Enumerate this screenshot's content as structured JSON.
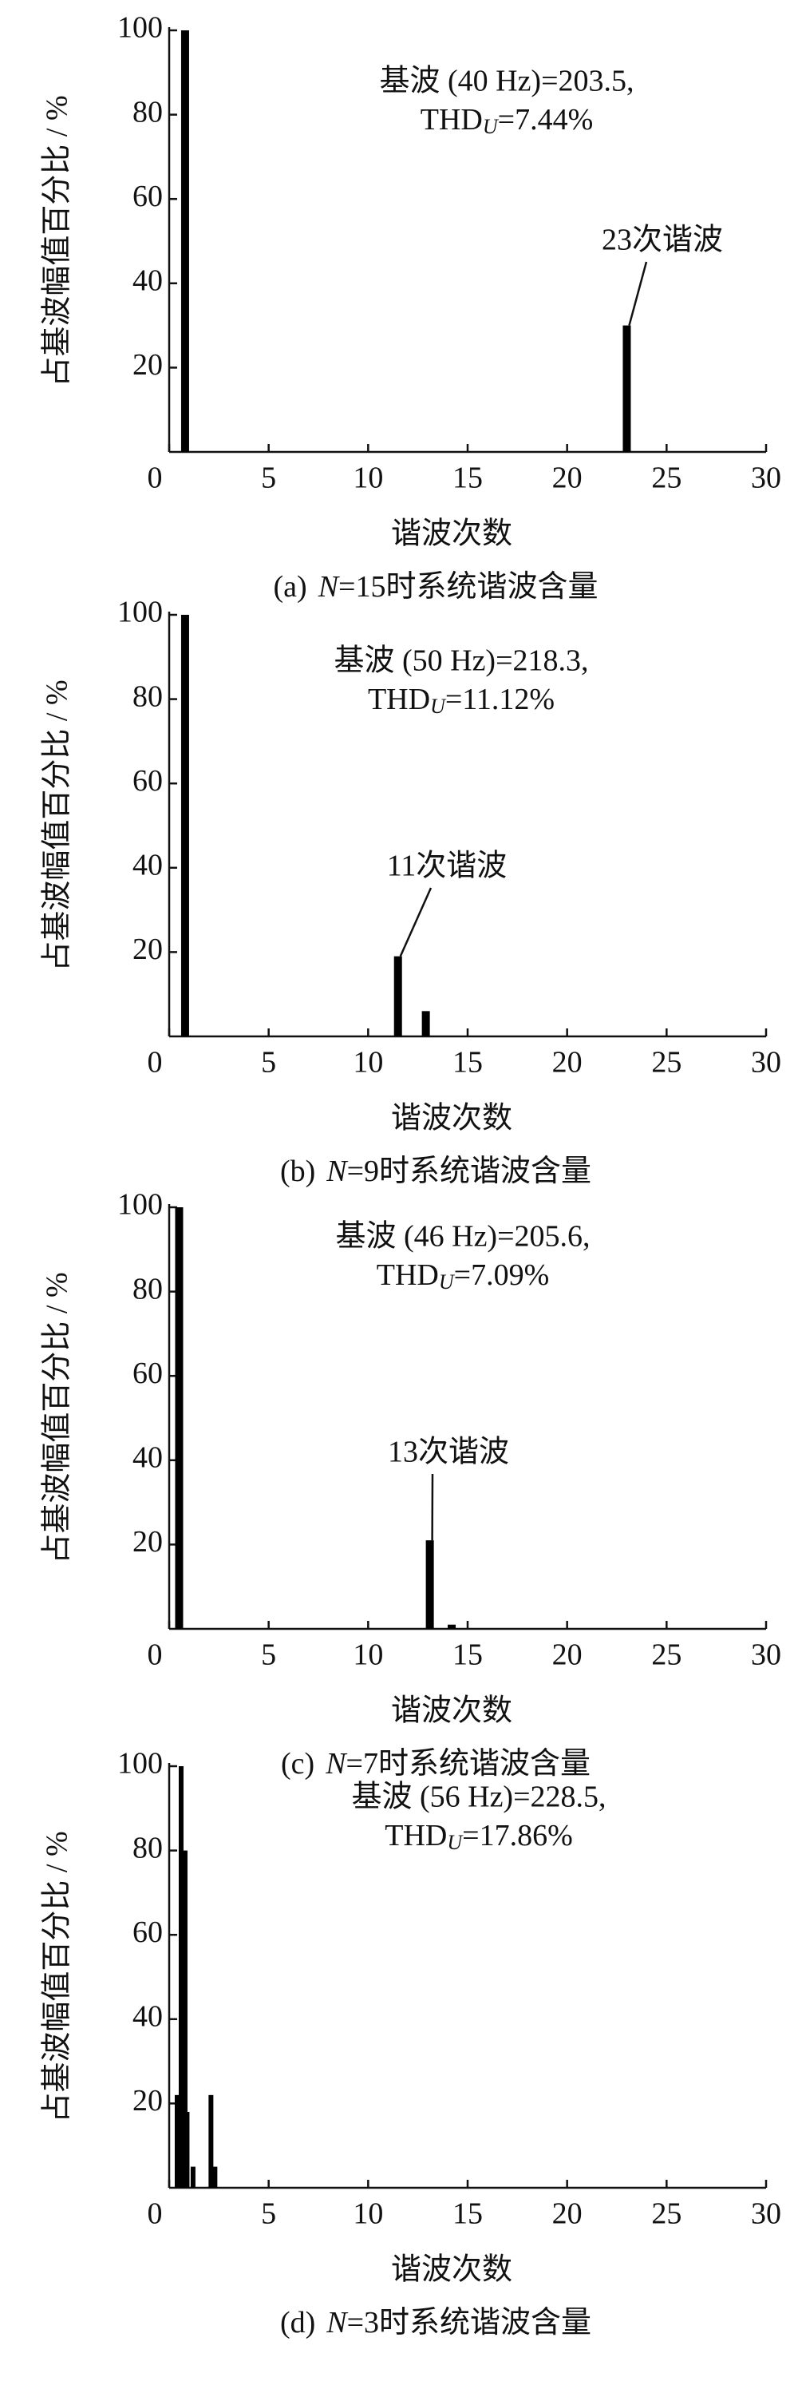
{
  "chart_data": [
    {
      "type": "bar",
      "x": [
        0.8,
        23
      ],
      "values": [
        100,
        30
      ],
      "xlim": [
        0,
        30
      ],
      "xticks": [
        0,
        5,
        10,
        15,
        20,
        25,
        30
      ],
      "ylim": [
        0,
        100
      ],
      "yticks": [
        20,
        40,
        60,
        80,
        100
      ],
      "x_label": "谐波次数",
      "y_label": "占基波幅值百分比 / %",
      "annotation": "基波 (40 Hz)=203.5,",
      "thd_prefix": "THD",
      "thd_sub": "U",
      "thd_value": "=7.44%",
      "callout": "23次谐波",
      "caption_prefix": "(a)",
      "caption_var": "N",
      "caption_rest": "=15时系统谐波含量",
      "color": "#000000"
    },
    {
      "type": "bar",
      "x": [
        0.8,
        11.5,
        12.9
      ],
      "values": [
        100,
        19,
        6
      ],
      "xlim": [
        0,
        30
      ],
      "xticks": [
        0,
        5,
        10,
        15,
        20,
        25,
        30
      ],
      "ylim": [
        0,
        100
      ],
      "yticks": [
        20,
        40,
        60,
        80,
        100
      ],
      "x_label": "谐波次数",
      "y_label": "占基波幅值百分比 / %",
      "annotation": "基波 (50 Hz)=218.3,",
      "thd_prefix": "THD",
      "thd_sub": "U",
      "thd_value": "=11.12%",
      "callout": "11次谐波",
      "caption_prefix": "(b)",
      "caption_var": "N",
      "caption_rest": "=9时系统谐波含量",
      "color": "#000000"
    },
    {
      "type": "bar",
      "x": [
        0.5,
        13.1,
        14.2
      ],
      "values": [
        100,
        21,
        1
      ],
      "xlim": [
        0,
        30
      ],
      "xticks": [
        0,
        5,
        10,
        15,
        20,
        25,
        30
      ],
      "ylim": [
        0,
        100
      ],
      "yticks": [
        20,
        40,
        60,
        80,
        100
      ],
      "x_label": "谐波次数",
      "y_label": "占基波幅值百分比 / %",
      "annotation": "基波 (46 Hz)=205.6,",
      "thd_prefix": "THD",
      "thd_sub": "U",
      "thd_value": "=7.09%",
      "callout": "13次谐波",
      "caption_prefix": "(c)",
      "caption_var": "N",
      "caption_rest": "=7时系统谐波含量",
      "color": "#000000"
    },
    {
      "type": "bar",
      "x": [
        0.4,
        0.6,
        0.8,
        0.9,
        1.2,
        2.1,
        2.3
      ],
      "values": [
        22,
        100,
        80,
        18,
        5,
        22,
        5
      ],
      "xlim": [
        0,
        30
      ],
      "xticks": [
        0,
        5,
        10,
        15,
        20,
        25,
        30
      ],
      "ylim": [
        0,
        100
      ],
      "yticks": [
        20,
        40,
        60,
        80,
        100
      ],
      "x_label": "谐波次数",
      "y_label": "占基波幅值百分比 / %",
      "annotation": "基波 (56 Hz)=228.5,",
      "thd_prefix": "THD",
      "thd_sub": "U",
      "thd_value": "=17.86%",
      "caption_prefix": "(d)",
      "caption_var": "N",
      "caption_rest": "=3时系统谐波含量",
      "color": "#000000"
    }
  ]
}
